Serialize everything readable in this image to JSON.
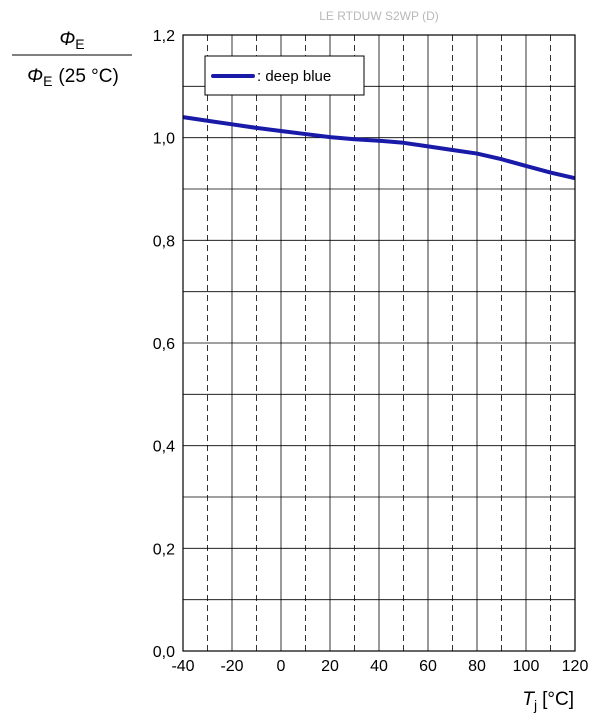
{
  "chart_data": {
    "type": "line",
    "watermark": "LE RTDUW S2WP (D)",
    "ylabel_numerator": "Φ",
    "ylabel_numerator_sub": "E",
    "ylabel_denominator": "Φ",
    "ylabel_denominator_sub": "E",
    "ylabel_denominator_suffix": "(25 °C)",
    "xlabel_symbol": "T",
    "xlabel_sub": "j",
    "xlabel_unit": "[°C]",
    "xlim": [
      -40,
      120
    ],
    "ylim": [
      0.0,
      1.2
    ],
    "x_ticks": [
      -40,
      -20,
      0,
      20,
      40,
      60,
      80,
      100,
      120
    ],
    "x_tick_labels": [
      "-40",
      "-20",
      "0",
      "20",
      "40",
      "60",
      "80",
      "100",
      "120"
    ],
    "y_ticks": [
      0.0,
      0.2,
      0.4,
      0.6,
      0.8,
      1.0,
      1.2
    ],
    "y_tick_labels": [
      "0,0",
      "0,2",
      "0,4",
      "0,6",
      "0,8",
      "1,0",
      "1,2"
    ],
    "minor_x_grid_dashed": [
      -30,
      -10,
      10,
      30,
      50,
      70,
      90,
      110
    ],
    "minor_y_grid": [
      0.1,
      0.3,
      0.5,
      0.7,
      0.9,
      1.1
    ],
    "grid": true,
    "legend_position": "top-left",
    "series": [
      {
        "name": ": deep blue",
        "color": "#1a1aa8",
        "x": [
          -40,
          -30,
          -20,
          -10,
          0,
          10,
          20,
          30,
          40,
          50,
          60,
          70,
          80,
          90,
          100,
          110,
          120
        ],
        "y": [
          1.04,
          1.033,
          1.026,
          1.019,
          1.013,
          1.007,
          1.001,
          0.997,
          0.994,
          0.99,
          0.983,
          0.976,
          0.969,
          0.958,
          0.945,
          0.932,
          0.921
        ]
      }
    ]
  }
}
